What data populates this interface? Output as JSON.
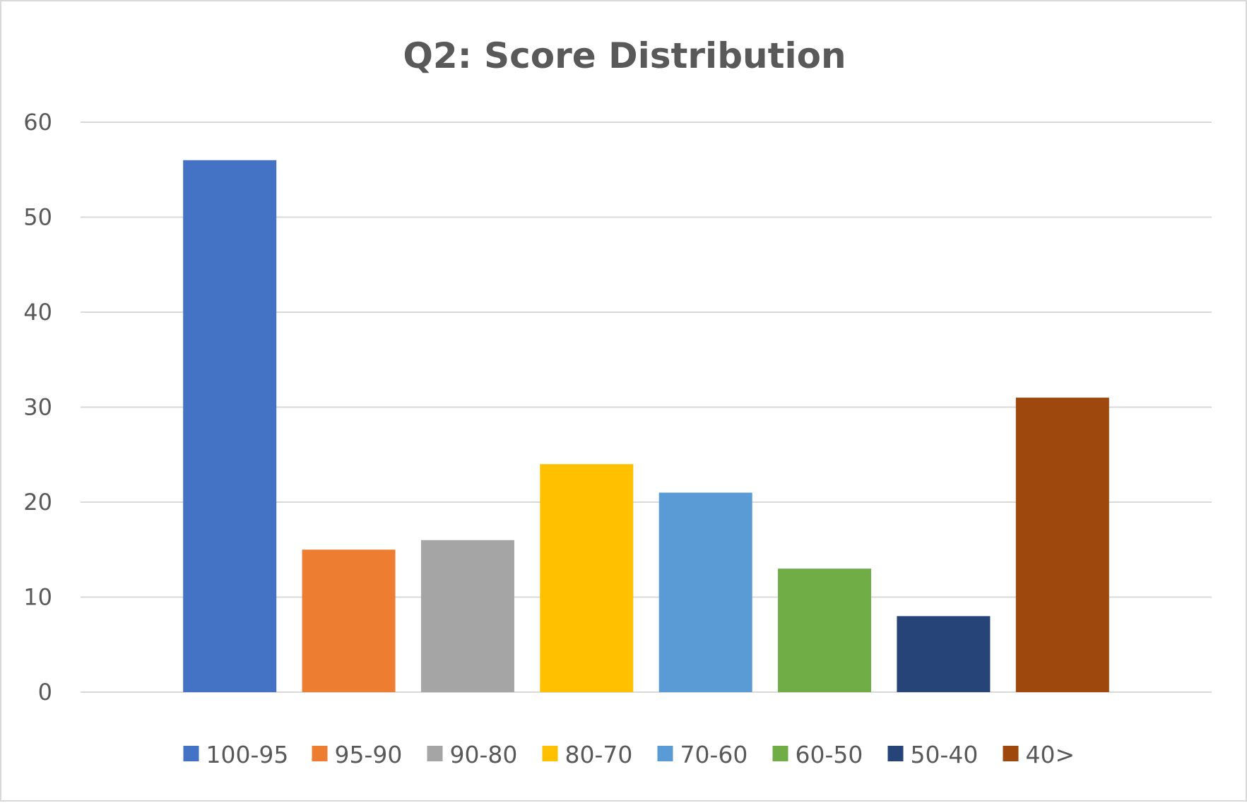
{
  "chart_data": {
    "type": "bar",
    "title": "Q2: Score Distribution",
    "xlabel": "",
    "ylabel": "",
    "ylim": [
      0,
      60
    ],
    "yticks": [
      0,
      10,
      20,
      30,
      40,
      50,
      60
    ],
    "grid": true,
    "legend_position": "bottom",
    "series": [
      {
        "name": "100-95",
        "value": 56,
        "color": "#4472c4"
      },
      {
        "name": "95-90",
        "value": 15,
        "color": "#ed7d31"
      },
      {
        "name": "90-80",
        "value": 16,
        "color": "#a5a5a5"
      },
      {
        "name": "80-70",
        "value": 24,
        "color": "#ffc000"
      },
      {
        "name": "70-60",
        "value": 21,
        "color": "#5b9bd5"
      },
      {
        "name": "60-50",
        "value": 13,
        "color": "#70ad47"
      },
      {
        "name": "50-40",
        "value": 8,
        "color": "#264478"
      },
      {
        "name": "40>",
        "value": 31,
        "color": "#9e480e"
      }
    ]
  }
}
